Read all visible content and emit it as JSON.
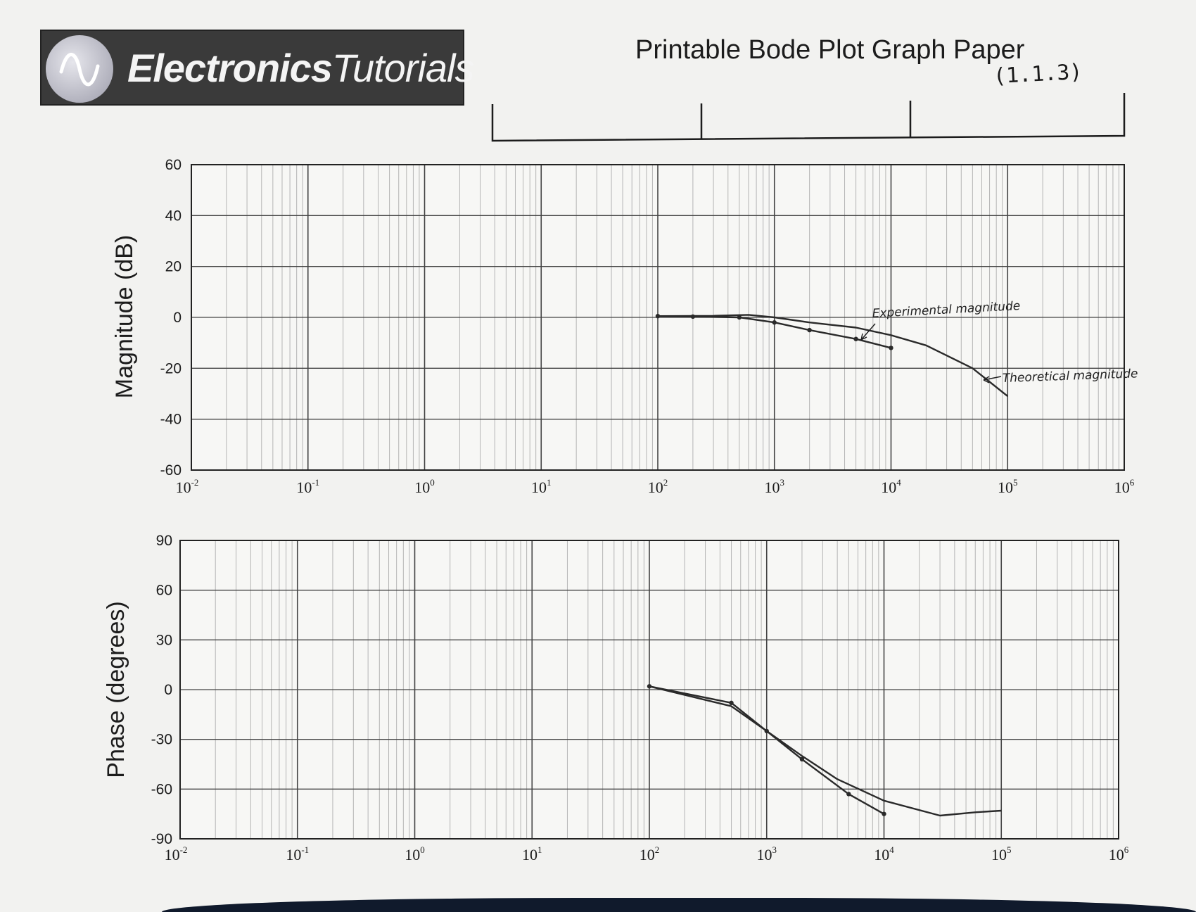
{
  "header": {
    "logo_bold": "Electronics",
    "logo_light": "Tutorials",
    "title": "Printable Bode Plot Graph Paper",
    "handwritten_note": "(1.1.3)"
  },
  "colors": {
    "ink": "#2a2a2a",
    "grid_minor": "#b4b4b4",
    "grid_major": "#444444",
    "logo_bg": "#3a3a3a"
  },
  "chart_data": [
    {
      "type": "line",
      "ylabel": "Magnitude (dB)",
      "xscale": "log",
      "xlim": [
        0.01,
        1000000
      ],
      "ylim": [
        -60,
        60
      ],
      "yticks": [
        "60",
        "40",
        "20",
        "0",
        "-20",
        "-40",
        "-60"
      ],
      "xticks": [
        {
          "base": "10",
          "exp": "-2"
        },
        {
          "base": "10",
          "exp": "-1"
        },
        {
          "base": "10",
          "exp": "0"
        },
        {
          "base": "10",
          "exp": "1"
        },
        {
          "base": "10",
          "exp": "2"
        },
        {
          "base": "10",
          "exp": "3"
        },
        {
          "base": "10",
          "exp": "4"
        },
        {
          "base": "10",
          "exp": "5"
        },
        {
          "base": "10",
          "exp": "6"
        }
      ],
      "grid": true,
      "annotations": [
        {
          "text": "Experimental magnitude",
          "x": 12000,
          "y": 0
        },
        {
          "text": "Theoretical magnitude",
          "x": 160000,
          "y": -27
        }
      ],
      "series": [
        {
          "name": "Experimental magnitude",
          "x": [
            100,
            200,
            500,
            1000,
            2000,
            5000,
            10000
          ],
          "y": [
            0.5,
            0.3,
            0,
            -2,
            -5,
            -8.5,
            -12
          ],
          "markers": true
        },
        {
          "name": "Theoretical magnitude",
          "x": [
            100,
            300,
            600,
            1000,
            2000,
            5000,
            10000,
            20000,
            50000,
            100000
          ],
          "y": [
            0.5,
            0.6,
            1,
            0,
            -2,
            -4,
            -7,
            -11,
            -20,
            -31
          ],
          "markers": false
        }
      ]
    },
    {
      "type": "line",
      "ylabel": "Phase (degrees)",
      "xscale": "log",
      "xlim": [
        0.01,
        1000000
      ],
      "ylim": [
        -90,
        90
      ],
      "yticks": [
        "90",
        "60",
        "30",
        "0",
        "-30",
        "-60",
        "-90"
      ],
      "xticks": [
        {
          "base": "10",
          "exp": "-2"
        },
        {
          "base": "10",
          "exp": "-1"
        },
        {
          "base": "10",
          "exp": "0"
        },
        {
          "base": "10",
          "exp": "1"
        },
        {
          "base": "10",
          "exp": "2"
        },
        {
          "base": "10",
          "exp": "3"
        },
        {
          "base": "10",
          "exp": "4"
        },
        {
          "base": "10",
          "exp": "5"
        },
        {
          "base": "10",
          "exp": "6"
        }
      ],
      "grid": true,
      "series": [
        {
          "x": [
            100,
            500,
            1000,
            2000,
            5000,
            10000
          ],
          "y": [
            2,
            -8,
            -25,
            -42,
            -63,
            -75
          ],
          "markers": true
        },
        {
          "x": [
            100,
            500,
            1000,
            2000,
            4000,
            10000,
            30000,
            60000,
            100000
          ],
          "y": [
            2,
            -10,
            -25,
            -40,
            -54,
            -67,
            -76,
            -74,
            -73
          ],
          "markers": false
        }
      ]
    }
  ]
}
